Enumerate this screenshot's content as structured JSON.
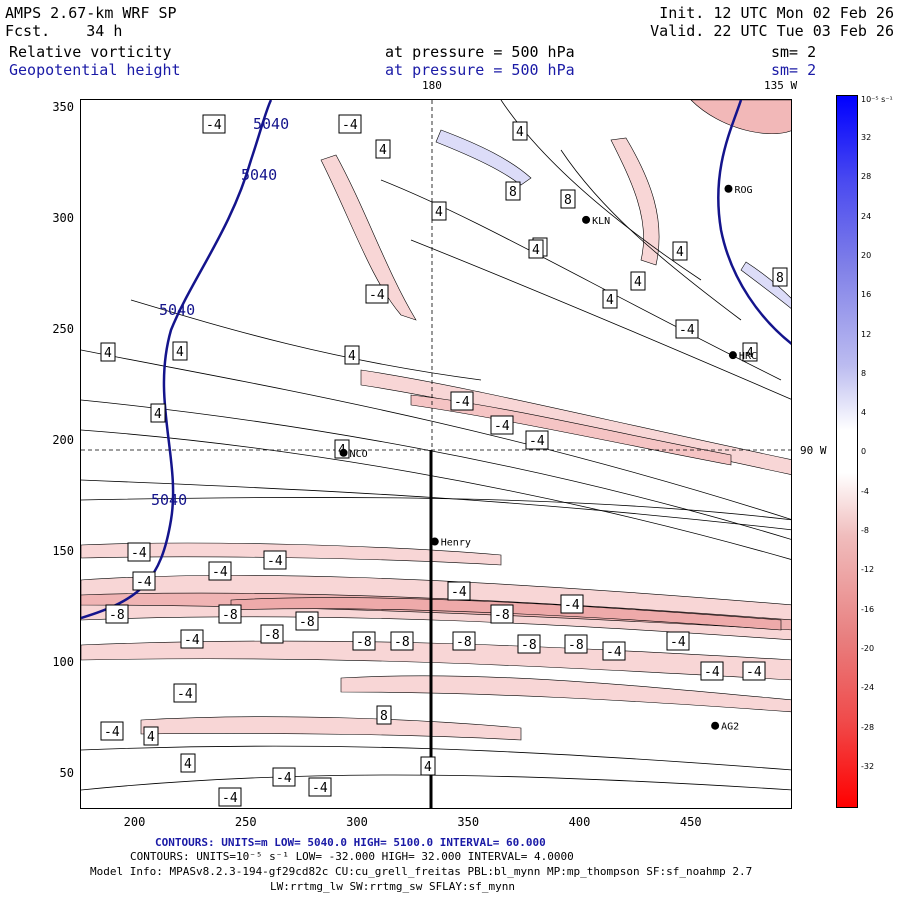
{
  "header": {
    "model": "AMPS 2.67-km WRF SP",
    "fcst_label": "Fcst.",
    "fcst_value": "34 h",
    "init": "Init. 12 UTC Mon 02 Feb 26",
    "valid": "Valid. 22 UTC Tue 03 Feb 26",
    "field1": "Relative vorticity",
    "field2": "Geopotential height",
    "pressure1": "at pressure =  500 hPa",
    "pressure2": "at pressure =  500 hPa",
    "sm1": "sm= 2",
    "sm2": "sm= 2"
  },
  "map_labels": {
    "lon180": "180",
    "lon135w": "135 W",
    "lat90s": "90 W"
  },
  "stations": [
    {
      "name": "KLN",
      "x": 402,
      "y": 300
    },
    {
      "name": "ROG",
      "x": 466,
      "y": 314
    },
    {
      "name": "HRC",
      "x": 468,
      "y": 239
    },
    {
      "name": "NCO",
      "x": 293,
      "y": 195
    },
    {
      "name": "Henry",
      "x": 334,
      "y": 155
    },
    {
      "name": "AG2",
      "x": 460,
      "y": 72
    }
  ],
  "axes": {
    "x_ticks": [
      "200",
      "250",
      "300",
      "350",
      "400",
      "450"
    ],
    "y_ticks": [
      "350",
      "300",
      "250",
      "200",
      "150",
      "100",
      "50"
    ],
    "x_range": [
      175,
      495
    ],
    "y_range": [
      34,
      354
    ]
  },
  "contour_labels": {
    "height": [
      "5040",
      "5040",
      "5040",
      "5040"
    ],
    "vort": [
      "-4",
      "-4",
      "4",
      "4",
      "8",
      "8",
      "4",
      "4",
      "-4",
      "4",
      "4",
      "4",
      "4",
      "-4",
      "4",
      "4",
      "4",
      "-4",
      "-4",
      "-4",
      "4",
      "4",
      "-4",
      "-4",
      "-4",
      "-4",
      "-8",
      "-8",
      "-8",
      "-8",
      "-8",
      "-8",
      "-8",
      "-8",
      "-8",
      "-8",
      "-4",
      "-4",
      "-4",
      "-4",
      "-4",
      "-4",
      "-4",
      "-4",
      "-4",
      "4",
      "4",
      "4",
      "-4",
      "-4",
      "-4",
      "8",
      "8",
      "4"
    ]
  },
  "colorbar": {
    "units": "10⁻⁵ s⁻¹",
    "labels": [
      "32",
      "28",
      "24",
      "20",
      "16",
      "12",
      "8",
      "4",
      "0",
      "-4",
      "-8",
      "-12",
      "-16",
      "-20",
      "-24",
      "-28",
      "-32"
    ]
  },
  "footer": {
    "line1": "CONTOURS:  UNITS=m  LOW=   5040.0          HIGH=   5100.0          INTERVAL=   60.000",
    "line2": "CONTOURS:  UNITS=10⁻⁵ s⁻¹   LOW= -32.000          HIGH=  32.000          INTERVAL=   4.0000",
    "line3": "Model Info: MPASv8.2.3-194-gf29cd82c CU:cu_grell_freitas PBL:bl_mynn MP:mp_thompson SF:sf_noahmp 2.7",
    "line4": "LW:rrtmg_lw SW:rrtmg_sw SFLAY:sf_mynn"
  },
  "colors": {
    "height_contour": "#14148c",
    "neg_fill": "#f8d0d0",
    "neg_fill_strong": "#f0b0b0",
    "pos_fill": "#d8d8f8"
  }
}
